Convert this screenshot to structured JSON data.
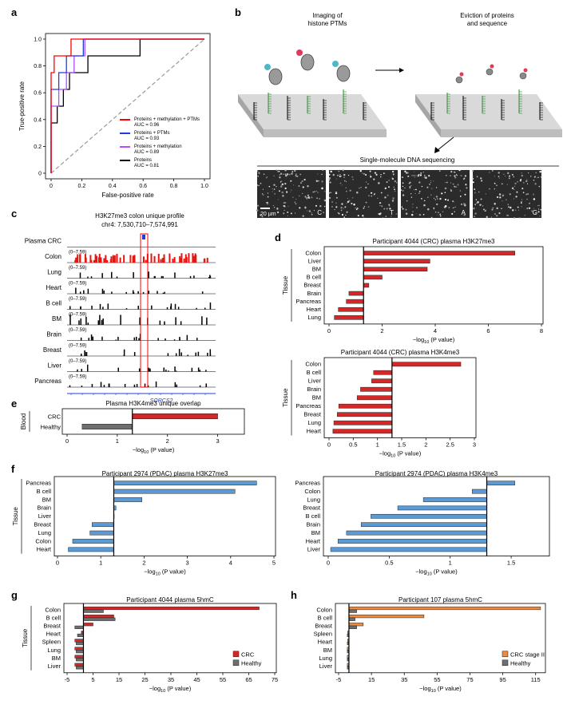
{
  "panel_letters": [
    "a",
    "b",
    "c",
    "d",
    "e",
    "f",
    "g",
    "h"
  ],
  "colors": {
    "red": "#d62728",
    "blue": "#5b9bd5",
    "orange": "#f08a3c",
    "grey": "#6e6e6e",
    "roc_red": "#ff0000",
    "roc_blue": "#1f3fd6",
    "roc_purple": "#b34dff",
    "roc_black": "#000000"
  },
  "panel_b": {
    "imaging_label": "Imaging of\nhistone PTMs",
    "eviction_label": "Eviction of proteins\nand sequence",
    "sequencing_title": "Single-molecule DNA sequencing",
    "scale_bar": "20 μm",
    "tiles": [
      "C",
      "T",
      "A",
      "G"
    ]
  },
  "panel_c": {
    "title": "H3K27me3 colon unique profile",
    "coords": "chr4: 7,530,710–7,574,991",
    "range_label": "(0–7.59)",
    "tracks": [
      "Plasma CRC",
      "Colon",
      "Lung",
      "Heart",
      "B cell",
      "BM",
      "Brain",
      "Breast",
      "Liver",
      "Pancreas"
    ],
    "gene": "SORCS2"
  },
  "chart_data": [
    {
      "id": "a",
      "type": "line",
      "xlabel": "False-positive rate",
      "ylabel": "True-positive rate",
      "xlim": [
        0,
        1
      ],
      "ylim": [
        0,
        1
      ],
      "xticks": [
        "0",
        "0.2",
        "0.4",
        "0.6",
        "0.8",
        "1.0"
      ],
      "yticks": [
        "0",
        "0.2",
        "0.4",
        "0.6",
        "0.8",
        "1.0"
      ],
      "series": [
        {
          "name": "Proteins + methylation + PTMs",
          "auc": "AUC = 0.96",
          "color": "#ff0000",
          "x": [
            0,
            0,
            0.02,
            0.02,
            0.07,
            0.07,
            0.12,
            0.12,
            0.13,
            0.13,
            0.25,
            0.25,
            1.0
          ],
          "y": [
            0,
            0.75,
            0.75,
            0.875,
            0.875,
            0.875,
            0.875,
            0.875,
            0.875,
            1.0,
            1.0,
            1.0,
            1.0
          ]
        },
        {
          "name": "Proteins + PTMs",
          "auc": "AUC = 0.93",
          "color": "#1f3fd6",
          "x": [
            0,
            0,
            0.05,
            0.05,
            0.1,
            0.1,
            0.15,
            0.15,
            0.21,
            0.21,
            1.0
          ],
          "y": [
            0,
            0.625,
            0.625,
            0.75,
            0.75,
            0.875,
            0.875,
            0.875,
            0.875,
            1.0,
            1.0
          ]
        },
        {
          "name": "Proteins + methylation",
          "auc": "AUC = 0.89",
          "color": "#b34dff",
          "x": [
            0,
            0,
            0.05,
            0.05,
            0.1,
            0.1,
            0.15,
            0.15,
            0.22,
            0.22,
            0.37,
            0.37,
            1.0
          ],
          "y": [
            0,
            0.5,
            0.5,
            0.625,
            0.625,
            0.75,
            0.75,
            0.875,
            0.875,
            1.0,
            1.0,
            1.0,
            1.0
          ]
        },
        {
          "name": "Proteins",
          "auc": "AUC = 0.81",
          "color": "#000000",
          "x": [
            0,
            0,
            0.04,
            0.04,
            0.08,
            0.08,
            0.12,
            0.12,
            0.16,
            0.16,
            0.24,
            0.24,
            0.37,
            0.37,
            0.58,
            0.58,
            0.73,
            0.73,
            1.0
          ],
          "y": [
            0,
            0.375,
            0.375,
            0.5,
            0.5,
            0.625,
            0.625,
            0.75,
            0.75,
            0.75,
            0.75,
            0.875,
            0.875,
            0.875,
            0.875,
            1.0,
            1.0,
            1.0,
            1.0
          ]
        }
      ]
    },
    {
      "id": "d1",
      "type": "bar",
      "orientation": "horizontal",
      "title": "Participant 4044 (CRC) plasma H3K27me3",
      "ylabel": "Tissue",
      "xlabel_main": "−log",
      "xlabel_sub": "10",
      "xlabel_tail": " (P value)",
      "categories": [
        "Colon",
        "Liver",
        "BM",
        "B cell",
        "Breast",
        "Brain",
        "Pancreas",
        "Heart",
        "Lung"
      ],
      "values": [
        7.0,
        3.8,
        3.7,
        2.0,
        1.5,
        0.75,
        0.65,
        0.35,
        0.2
      ],
      "colors": [
        "red",
        "red",
        "red",
        "red",
        "red",
        "red",
        "red",
        "red",
        "red"
      ],
      "xlim": [
        0,
        8
      ],
      "xticks": [
        0,
        2,
        4,
        6,
        8
      ],
      "threshold": 1.3
    },
    {
      "id": "d2",
      "type": "bar",
      "orientation": "horizontal",
      "title": "Participant 4044 (CRC) plasma H3K4me3",
      "ylabel": "Tissue",
      "xlabel_main": "−log",
      "xlabel_sub": "10",
      "xlabel_tail": " (P value)",
      "categories": [
        "Colon",
        "B cell",
        "Liver",
        "Brain",
        "BM",
        "Pancreas",
        "Breast",
        "Lung",
        "Heart"
      ],
      "values": [
        2.72,
        0.92,
        0.88,
        0.65,
        0.58,
        0.2,
        0.17,
        0.1,
        0.08
      ],
      "colors": [
        "red",
        "red",
        "red",
        "red",
        "red",
        "red",
        "red",
        "red",
        "red"
      ],
      "xlim": [
        0,
        3
      ],
      "xticks": [
        0,
        0.5,
        1,
        1.5,
        2,
        2.5,
        3
      ],
      "threshold": 1.3
    },
    {
      "id": "e",
      "type": "bar",
      "orientation": "horizontal",
      "title": "Plasma H3K4me3 unique overlap",
      "ylabel": "Blood",
      "xlabel_main": "−log",
      "xlabel_sub": "10",
      "xlabel_tail": " (P value)",
      "categories": [
        "CRC",
        "Healthy"
      ],
      "values": [
        3.0,
        0.3
      ],
      "colors": [
        "red",
        "grey"
      ],
      "xlim": [
        0,
        3.5
      ],
      "xticks": [
        0,
        1,
        2,
        3
      ],
      "threshold": 1.3
    },
    {
      "id": "f1",
      "type": "bar",
      "orientation": "horizontal",
      "title": "Participant 2974 (PDAC) plasma H3K27me3",
      "ylabel": "Tissue",
      "xlabel_main": "−log",
      "xlabel_sub": "10",
      "xlabel_tail": " (P value)",
      "categories": [
        "Pancreas",
        "B cell",
        "BM",
        "Brain",
        "Liver",
        "Breast",
        "Lung",
        "Colon",
        "Heart"
      ],
      "values": [
        4.6,
        4.1,
        1.95,
        1.35,
        1.3,
        0.8,
        0.75,
        0.35,
        0.25
      ],
      "colors": [
        "blue",
        "blue",
        "blue",
        "blue",
        "blue",
        "blue",
        "blue",
        "blue",
        "blue"
      ],
      "xlim": [
        0,
        5
      ],
      "xticks": [
        0,
        1,
        2,
        3,
        4,
        5
      ],
      "threshold": 1.3
    },
    {
      "id": "f2",
      "type": "bar",
      "orientation": "horizontal",
      "title": "Participant 2974 (PDAC) plasma H3K4me3",
      "ylabel": "",
      "xlabel_main": "−log",
      "xlabel_sub": "10",
      "xlabel_tail": " (P value)",
      "categories": [
        "Pancreas",
        "Colon",
        "Lung",
        "Breast",
        "B cell",
        "Brain",
        "BM",
        "Heart",
        "Liver"
      ],
      "values": [
        1.53,
        1.18,
        0.78,
        0.57,
        0.35,
        0.27,
        0.15,
        0.08,
        0.02
      ],
      "colors": [
        "blue",
        "blue",
        "blue",
        "blue",
        "blue",
        "blue",
        "blue",
        "blue",
        "blue"
      ],
      "xlim": [
        0,
        1.65
      ],
      "xticks": [
        0,
        0.5,
        1,
        1.5
      ],
      "threshold": 1.3
    },
    {
      "id": "g",
      "type": "bar",
      "orientation": "horizontal",
      "grouped": true,
      "title": "Participant 4044 plasma 5hmC",
      "ylabel": "Tissue",
      "xlabel_main": "−log",
      "xlabel_sub": "10",
      "xlabel_tail": " (P value)",
      "categories": [
        "Colon",
        "B cell",
        "Breast",
        "Heart",
        "Spleen",
        "Lung",
        "BM",
        "Liver"
      ],
      "series": [
        {
          "name": "CRC",
          "color": "red",
          "values": [
            69,
            13,
            5,
            0.5,
            -2,
            -2,
            -2,
            -2
          ]
        },
        {
          "name": "Healthy",
          "color": "grey",
          "values": [
            9,
            13.5,
            -2,
            -1,
            -1.5,
            -1.5,
            -1.5,
            -1.5
          ]
        }
      ],
      "xlim": [
        -5,
        75
      ],
      "xticks": [
        -5,
        5,
        15,
        25,
        35,
        45,
        55,
        65,
        75
      ],
      "threshold": 1.3
    },
    {
      "id": "h",
      "type": "bar",
      "orientation": "horizontal",
      "grouped": true,
      "title": "Participant 107 plasma 5hmC",
      "ylabel": "",
      "xlabel_main": "−log",
      "xlabel_sub": "10",
      "xlabel_tail": " (P value)",
      "categories": [
        "Colon",
        "B cell",
        "Breast",
        "Spleen",
        "Heart",
        "BM",
        "Lung",
        "Liver"
      ],
      "series": [
        {
          "name": "CRC stage II",
          "color": "orange",
          "values": [
            118,
            47,
            10,
            0.5,
            0.5,
            0.3,
            0.3,
            0.3
          ]
        },
        {
          "name": "Healthy",
          "color": "grey",
          "values": [
            6,
            5,
            6,
            0.3,
            0.3,
            0.3,
            0.3,
            0.3
          ]
        }
      ],
      "xlim": [
        -5,
        120
      ],
      "xticks": [
        -5,
        15,
        35,
        55,
        75,
        95,
        115
      ],
      "threshold": 1.3
    }
  ]
}
